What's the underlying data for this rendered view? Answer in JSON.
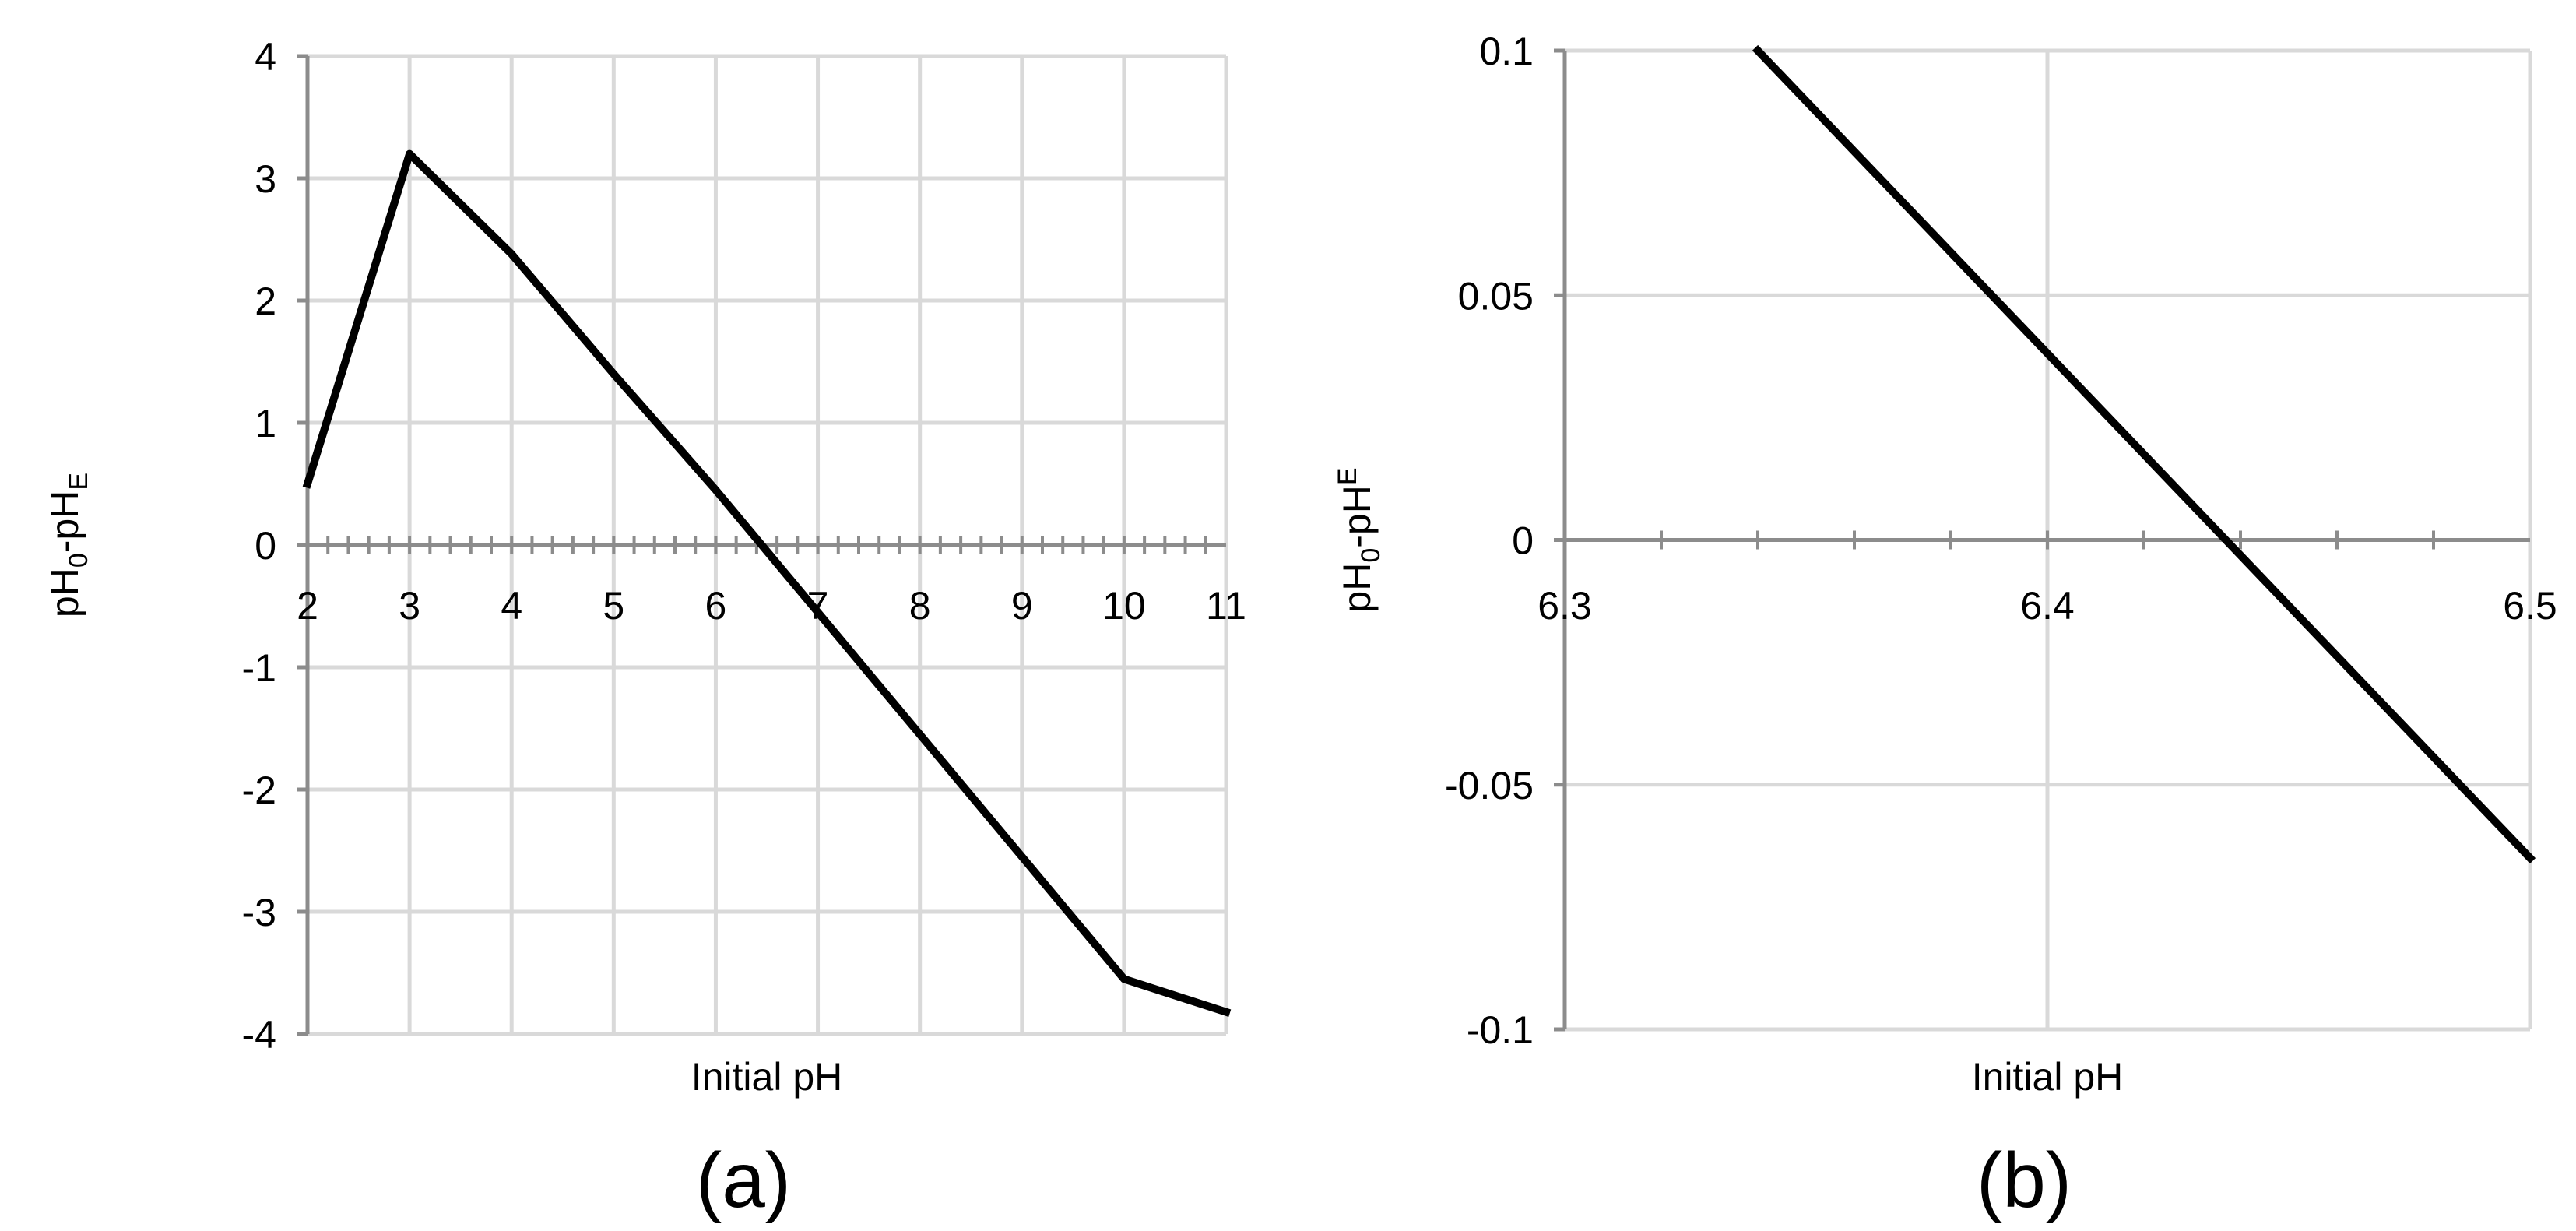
{
  "chart_data": [
    {
      "type": "line",
      "panel_label": "(a)",
      "xlabel": "Initial pH",
      "ylabel": {
        "base": "pH",
        "sub1": "0",
        "mid": "-pH",
        "sub2": "E"
      },
      "x": [
        2,
        3,
        4,
        5,
        6,
        7,
        8,
        9,
        10,
        11
      ],
      "series": [
        {
          "values": [
            0.5,
            3.2,
            2.38,
            1.4,
            0.45,
            -0.55,
            -1.55,
            -2.55,
            -3.55,
            -3.82
          ]
        }
      ],
      "xlim": [
        2,
        11
      ],
      "ylim": [
        -4,
        4
      ],
      "xticks": [
        2,
        3,
        4,
        5,
        6,
        7,
        8,
        9,
        10,
        11
      ],
      "yticks": [
        -4,
        -3,
        -2,
        -1,
        0,
        1,
        2,
        3,
        4
      ],
      "xtick_labels": [
        "2",
        "3",
        "4",
        "5",
        "6",
        "7",
        "8",
        "9",
        "10",
        "11"
      ],
      "ytick_labels": [
        "-4",
        "-3",
        "-2",
        "-1",
        "0",
        "1",
        "2",
        "3",
        "4"
      ],
      "x_minor_step": 0.2,
      "grid": true,
      "line_color": "#000000",
      "grid_color": "#d9d9d9"
    },
    {
      "type": "line",
      "panel_label": "(b)",
      "xlabel": "Initial pH",
      "ylabel": {
        "base": "pH",
        "sub1": "0",
        "mid": "-pH",
        "sup2": "E"
      },
      "x": [
        6.34,
        6.5
      ],
      "series": [
        {
          "values": [
            0.1,
            -0.065
          ]
        }
      ],
      "xlim": [
        6.3,
        6.5
      ],
      "ylim": [
        -0.1,
        0.1
      ],
      "xticks": [
        6.3,
        6.4,
        6.5
      ],
      "yticks": [
        -0.1,
        -0.05,
        0,
        0.05,
        0.1
      ],
      "xtick_labels": [
        "6.3",
        "6.4",
        "6.5"
      ],
      "ytick_labels": [
        "-0.1",
        "-0.05",
        "0",
        "0.05",
        "0.1"
      ],
      "x_minor_step": 0.02,
      "grid": true,
      "line_color": "#000000",
      "grid_color": "#d9d9d9"
    }
  ]
}
